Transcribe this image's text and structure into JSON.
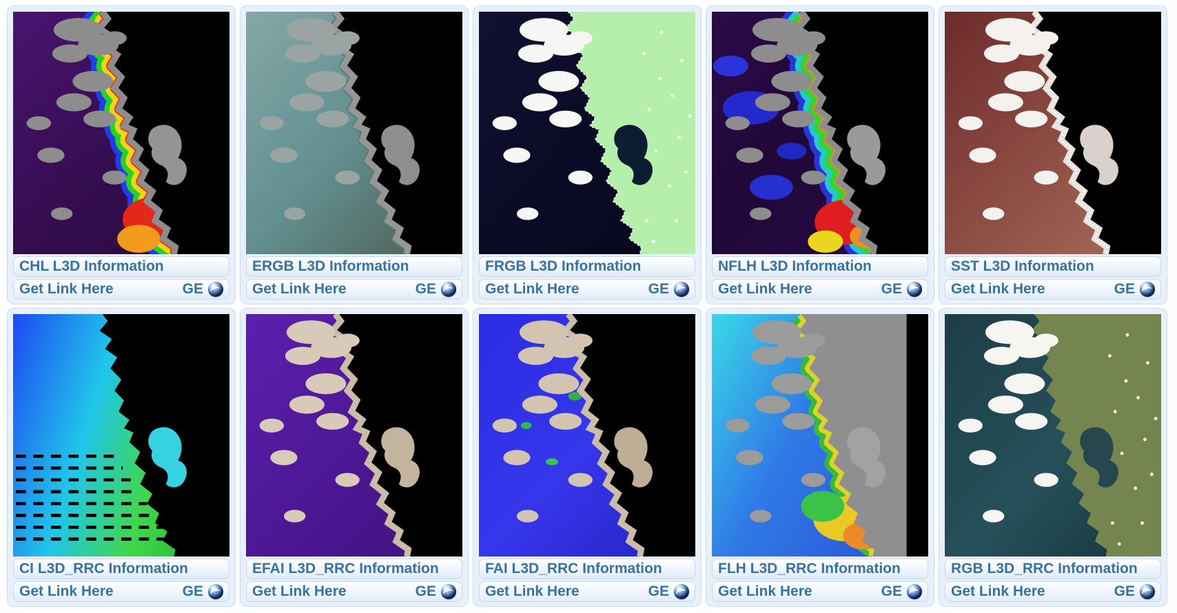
{
  "colors": {
    "page_bg": "#fdfefe",
    "link_text": "#39719f",
    "card_bg": "#e8f1fb",
    "card_border": "#cadef1",
    "bar_border": "#c4d9ee",
    "bar_bg_top": "#ffffff",
    "bar_bg_bottom": "#e1ecf8",
    "globe_dark_blue": "#0e2450"
  },
  "icons": {
    "google_earth": "globe-icon"
  },
  "tiles": [
    {
      "title": "CHL L3D Information",
      "get_link_label": "Get Link Here",
      "ge_label": "GE",
      "palette": {
        "dir": [
          0,
          0,
          0.8,
          1
        ],
        "ocean": [
          [
            0,
            "#4a1470"
          ],
          [
            0.55,
            "#360d52"
          ],
          [
            1,
            "#2a0a40"
          ]
        ],
        "bands": [
          "#1f3de8",
          "#27d02b",
          "#ecd619",
          "#e83418"
        ],
        "hotspots": [
          [
            208,
            298,
            46,
            32,
            "#e22818"
          ],
          [
            186,
            326,
            32,
            20,
            "#f09a1e"
          ],
          [
            228,
            270,
            20,
            14,
            "#eede1c"
          ]
        ],
        "land": "#000000",
        "strip": "#8d8d8d",
        "bay": "#949494",
        "cloud": "#8d8d8d"
      }
    },
    {
      "title": "ERGB L3D Information",
      "get_link_label": "Get Link Here",
      "ge_label": "GE",
      "palette": {
        "dir": [
          0,
          0,
          1,
          1
        ],
        "ocean": [
          [
            0,
            "#84a8a6"
          ],
          [
            0.5,
            "#628f90"
          ],
          [
            1,
            "#4c5a4c"
          ]
        ],
        "bands": [
          "#5a7a72"
        ],
        "land": "#000000",
        "strip": "#969696",
        "bay": "#8e8e8e",
        "cloud": "#9aa4a2"
      }
    },
    {
      "title": "FRGB L3D Information",
      "get_link_label": "Get Link Here",
      "ge_label": "GE",
      "palette": {
        "dir": [
          0,
          0,
          1,
          1
        ],
        "ocean": [
          [
            0,
            "#101032"
          ],
          [
            0.6,
            "#0a0a24"
          ],
          [
            1,
            "#06061a"
          ]
        ],
        "land": "#b6eeab",
        "bay": "#0b1d33",
        "cloud": "#f6f6f4",
        "fringe": true,
        "landDots": "#ffffff"
      }
    },
    {
      "title": "NFLH L3D Information",
      "get_link_label": "Get Link Here",
      "ge_label": "GE",
      "palette": {
        "dir": [
          0,
          0,
          0.8,
          1
        ],
        "ocean": [
          [
            0,
            "#2c0b48"
          ],
          [
            0.5,
            "#200838"
          ],
          [
            1,
            "#260a42"
          ]
        ],
        "patches": [
          [
            58,
            138,
            42,
            24,
            "#2329cc"
          ],
          [
            28,
            78,
            26,
            15,
            "#2a34da"
          ],
          [
            88,
            252,
            32,
            18,
            "#2630cf"
          ],
          [
            118,
            200,
            22,
            12,
            "#1f28c0"
          ]
        ],
        "bands": [
          "#2a35d8",
          "#27c7cf",
          "#31d431",
          "#ea8f1e"
        ],
        "hotspots": [
          [
            198,
            302,
            46,
            32,
            "#df1f1f"
          ],
          [
            168,
            330,
            26,
            16,
            "#ecd51f"
          ],
          [
            232,
            322,
            28,
            18,
            "#ef8f1e"
          ]
        ],
        "land": "#000000",
        "strip": "#8d8d8d",
        "bay": "#9a9a9a",
        "cloud": "#8d8d8d"
      }
    },
    {
      "title": "SST L3D Information",
      "get_link_label": "Get Link Here",
      "ge_label": "GE",
      "palette": {
        "dir": [
          0,
          0,
          0.9,
          1
        ],
        "ocean": [
          [
            0,
            "#6d2a2b"
          ],
          [
            0.5,
            "#8a4a42"
          ],
          [
            1,
            "#a26a58"
          ]
        ],
        "land": "#000000",
        "strip": "#e8e2de",
        "bay": "#d9d2cc",
        "cloud": "#f4f1ee",
        "fringe": true
      }
    },
    {
      "title": "CI L3D_RRC Information",
      "get_link_label": "Get Link Here",
      "ge_label": "GE",
      "palette": {
        "dir": [
          0,
          0,
          1,
          0.35
        ],
        "ocean": [
          [
            0,
            "#1d49f2"
          ],
          [
            0.45,
            "#21c6ea"
          ],
          [
            0.78,
            "#40d74c"
          ],
          [
            1,
            "#2fc13c"
          ]
        ],
        "land": "#000000",
        "bay": "#36d2e2",
        "streaks": "#000000"
      }
    },
    {
      "title": "EFAI L3D_RRC Information",
      "get_link_label": "Get Link Here",
      "ge_label": "GE",
      "palette": {
        "dir": [
          0,
          0,
          0.9,
          1
        ],
        "ocean": [
          [
            0,
            "#5d1fae"
          ],
          [
            0.55,
            "#4d1795"
          ],
          [
            1,
            "#401381"
          ]
        ],
        "land": "#000000",
        "strip": "#cbbca8",
        "bay": "#c3b49e",
        "cloud": "#d8cab9"
      }
    },
    {
      "title": "FAI L3D_RRC Information",
      "get_link_label": "Get Link Here",
      "ge_label": "GE",
      "palette": {
        "dir": [
          0,
          0,
          0.9,
          1
        ],
        "ocean": [
          [
            0,
            "#2b2be2"
          ],
          [
            0.55,
            "#3636ec"
          ],
          [
            1,
            "#2525c4"
          ]
        ],
        "patches": [
          [
            142,
            118,
            10,
            6,
            "#2fae4a"
          ],
          [
            108,
            212,
            9,
            5,
            "#39c05a"
          ],
          [
            70,
            160,
            8,
            5,
            "#34b852"
          ]
        ],
        "land": "#000000",
        "strip": "#cbbca8",
        "bay": "#bfae96",
        "cloud": "#d2c4b0"
      }
    },
    {
      "title": "FLH L3D_RRC Information",
      "get_link_label": "Get Link Here",
      "ge_label": "GE",
      "palette": {
        "dir": [
          0,
          0,
          1,
          0.6
        ],
        "ocean": [
          [
            0,
            "#3ad8e8"
          ],
          [
            0.5,
            "#2f79e6"
          ],
          [
            1,
            "#2b5ad8"
          ]
        ],
        "bands": [
          "#35ba3f",
          "#ddd22a"
        ],
        "hotspots": [
          [
            196,
            294,
            46,
            32,
            "#e9c922"
          ],
          [
            224,
            318,
            30,
            20,
            "#ea8a28"
          ],
          [
            164,
            276,
            32,
            22,
            "#3cc246"
          ]
        ],
        "land": "#8f8f8f",
        "bay": "#a2a2a2",
        "cloud": "#9b9b9b",
        "right_band": "#000000"
      }
    },
    {
      "title": "RGB L3D_RRC Information",
      "get_link_label": "Get Link Here",
      "ge_label": "GE",
      "palette": {
        "dir": [
          0,
          0,
          1,
          1
        ],
        "ocean": [
          [
            0,
            "#1d3d46"
          ],
          [
            0.55,
            "#26505a"
          ],
          [
            1,
            "#16343b"
          ]
        ],
        "land": "#75854f",
        "bay": "#27474f",
        "cloud": "#f5f5f2",
        "landDots": "#ffffff"
      }
    }
  ]
}
